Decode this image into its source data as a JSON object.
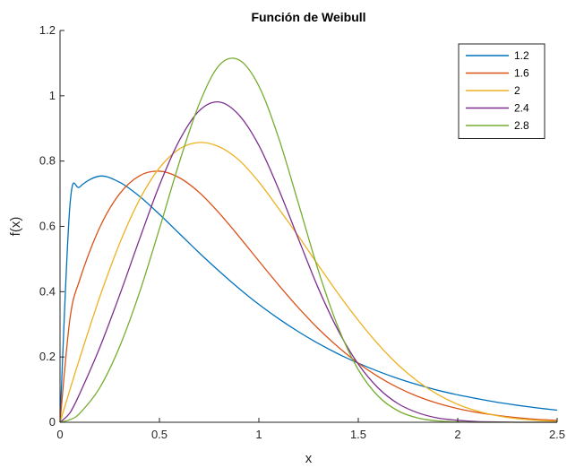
{
  "chart_data": {
    "type": "line",
    "title": "Función de Weibull",
    "xlabel": "x",
    "ylabel": "f(x)",
    "xlim": [
      0,
      2.5
    ],
    "ylim": [
      0,
      1.2
    ],
    "xticks": [
      "0",
      "0.5",
      "1",
      "1.5",
      "2",
      "2.5"
    ],
    "yticks": [
      "0",
      "0.2",
      "0.4",
      "0.6",
      "0.8",
      "1",
      "1.2"
    ],
    "xtick_values": [
      0,
      0.5,
      1,
      1.5,
      2,
      2.5
    ],
    "ytick_values": [
      0,
      0.2,
      0.4,
      0.6,
      0.8,
      1,
      1.2
    ],
    "grid": false,
    "legend_position": "top-right",
    "x": [
      0,
      0.05,
      0.1,
      0.2,
      0.3,
      0.4,
      0.5,
      0.6,
      0.7,
      0.8,
      0.9,
      1.0,
      1.1,
      1.2,
      1.3,
      1.4,
      1.5,
      1.6,
      1.7,
      1.8,
      1.9,
      2.0,
      2.1,
      2.2,
      2.3,
      2.4,
      2.5
    ],
    "series": [
      {
        "name": "1.2",
        "color": "#0072BD",
        "values": [
          0,
          0.665,
          0.721,
          0.754,
          0.735,
          0.692,
          0.637,
          0.578,
          0.519,
          0.463,
          0.41,
          0.361,
          0.317,
          0.277,
          0.241,
          0.209,
          0.181,
          0.156,
          0.134,
          0.115,
          0.098,
          0.084,
          0.072,
          0.061,
          0.052,
          0.044,
          0.037
        ]
      },
      {
        "name": "1.6",
        "color": "#D95319",
        "values": [
          0,
          0.317,
          0.438,
          0.597,
          0.7,
          0.755,
          0.769,
          0.749,
          0.704,
          0.641,
          0.569,
          0.494,
          0.42,
          0.35,
          0.286,
          0.23,
          0.181,
          0.14,
          0.106,
          0.079,
          0.058,
          0.042,
          0.03,
          0.021,
          0.014,
          0.009,
          0.006
        ]
      },
      {
        "name": "2",
        "color": "#EDB120",
        "values": [
          0,
          0.1,
          0.198,
          0.384,
          0.548,
          0.682,
          0.779,
          0.837,
          0.857,
          0.844,
          0.803,
          0.736,
          0.654,
          0.569,
          0.48,
          0.393,
          0.312,
          0.239,
          0.176,
          0.125,
          0.085,
          0.055,
          0.034,
          0.02,
          0.011,
          0.006,
          0.003
        ]
      },
      {
        "name": "2.4",
        "color": "#7E2F8E",
        "values": [
          0,
          0.029,
          0.089,
          0.229,
          0.39,
          0.561,
          0.726,
          0.863,
          0.954,
          0.981,
          0.941,
          0.848,
          0.713,
          0.56,
          0.409,
          0.28,
          0.178,
          0.105,
          0.057,
          0.029,
          0.013,
          0.006,
          0.002,
          0.001,
          0.0,
          0.0,
          0.0
        ]
      },
      {
        "name": "2.8",
        "color": "#77AC30",
        "values": [
          0,
          0.008,
          0.028,
          0.106,
          0.232,
          0.398,
          0.593,
          0.796,
          0.975,
          1.093,
          1.11,
          1.03,
          0.87,
          0.668,
          0.463,
          0.289,
          0.161,
          0.08,
          0.035,
          0.013,
          0.004,
          0.001,
          0.0,
          0.0,
          0.0,
          0.0,
          0.0
        ]
      }
    ]
  }
}
